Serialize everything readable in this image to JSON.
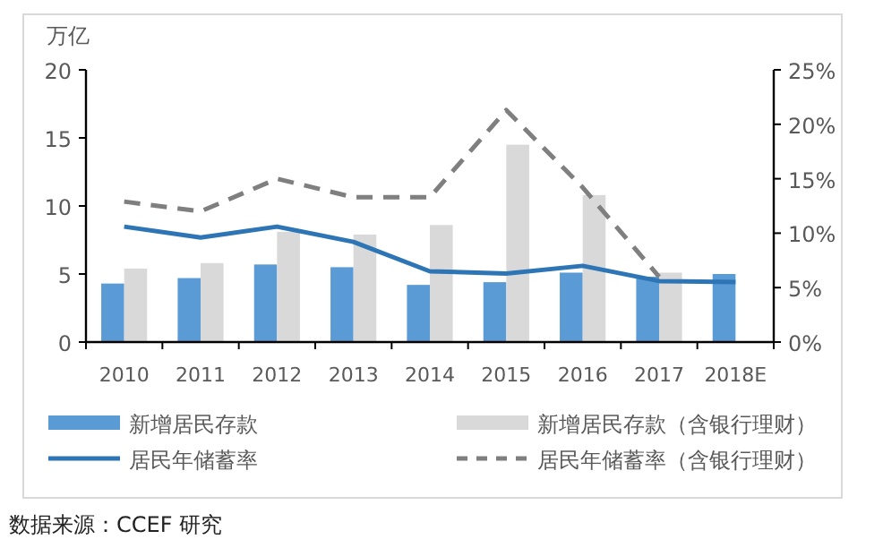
{
  "chart_data": {
    "type": "bar",
    "ylabel": "万亿",
    "categories": [
      "2010",
      "2011",
      "2012",
      "2013",
      "2014",
      "2015",
      "2016",
      "2017",
      "2018E"
    ],
    "ylim": [
      0,
      20
    ],
    "yticks": [
      0,
      5,
      10,
      15,
      20
    ],
    "y2lim": [
      0,
      25
    ],
    "y2ticks": [
      {
        "value": 0,
        "label": "0%"
      },
      {
        "value": 5,
        "label": "5%"
      },
      {
        "value": 10,
        "label": "10%"
      },
      {
        "value": 15,
        "label": "15%"
      },
      {
        "value": 20,
        "label": "20%"
      },
      {
        "value": 25,
        "label": "25%"
      }
    ],
    "series": [
      {
        "name": "新增居民存款",
        "color": "#5b9bd5",
        "values": [
          4.3,
          4.7,
          5.7,
          5.5,
          4.2,
          4.4,
          5.1,
          4.8,
          5.0
        ]
      },
      {
        "name": "新增居民存款（含银行理财）",
        "color": "#d9d9d9",
        "values": [
          5.4,
          5.8,
          8.1,
          7.9,
          8.6,
          14.5,
          10.8,
          5.1,
          null
        ]
      },
      {
        "name": "居民年储蓄率",
        "type": "line",
        "axis": "y2",
        "color": "#2e75b6",
        "line_style": "solid",
        "values": [
          10.6,
          9.6,
          10.6,
          9.2,
          6.5,
          6.3,
          7.0,
          5.6,
          5.5
        ]
      },
      {
        "name": "居民年储蓄率（含银行理财）",
        "type": "line",
        "axis": "y2",
        "color": "#7f7f7f",
        "line_style": "dashed",
        "values": [
          12.9,
          12.0,
          15.0,
          13.3,
          13.3,
          21.3,
          14.2,
          6.0,
          null
        ]
      }
    ],
    "legend": "bottom",
    "grid": false,
    "annotations": [
      "数据来源：CCEF 研究"
    ]
  }
}
